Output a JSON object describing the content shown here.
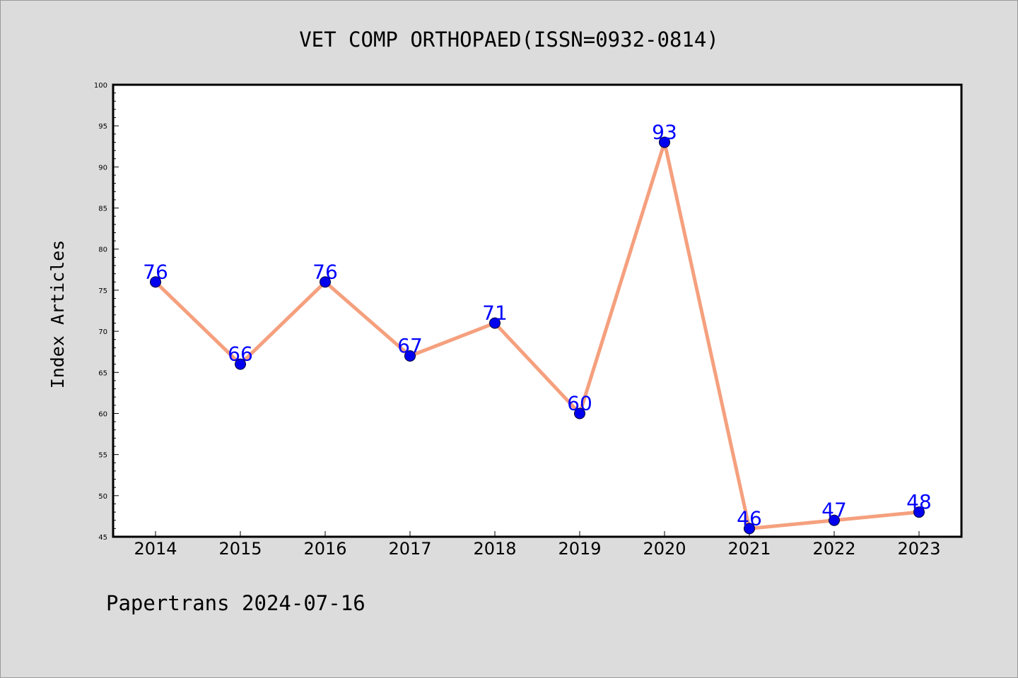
{
  "chart_data": {
    "type": "line",
    "title": "VET COMP ORTHOPAED(ISSN=0932-0814)",
    "ylabel": "Index Articles",
    "xlabel": "",
    "categories": [
      "2014",
      "2015",
      "2016",
      "2017",
      "2018",
      "2019",
      "2020",
      "2021",
      "2022",
      "2023"
    ],
    "values": [
      76,
      66,
      76,
      67,
      71,
      60,
      93,
      46,
      47,
      48
    ],
    "ylim": [
      45,
      100
    ],
    "yticks": [
      45,
      50,
      55,
      60,
      65,
      70,
      75,
      80,
      85,
      90,
      95,
      100
    ],
    "grid": false,
    "legend": "none",
    "line_color": "#f5a07e",
    "marker_color": "#0000ee",
    "label_color": "#0000ff"
  },
  "footer": "Papertrans 2024-07-16",
  "colors": {
    "background": "#dcdcdc",
    "plot_background": "#ffffff"
  }
}
